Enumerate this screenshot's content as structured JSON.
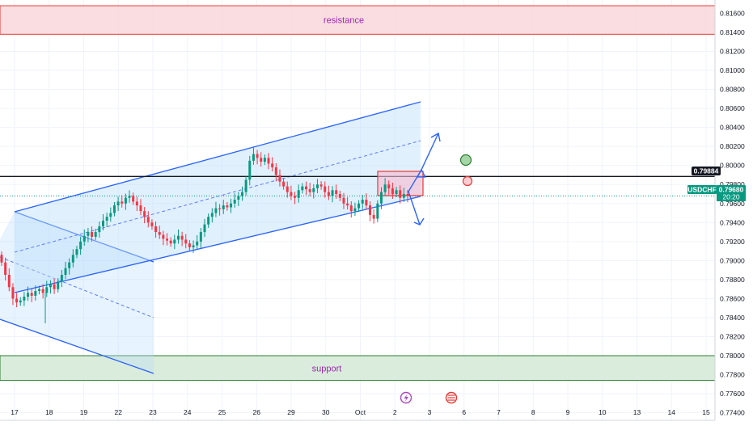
{
  "chart_data": {
    "type": "candlestick",
    "symbol": "USDCHF",
    "price_axis": {
      "ticks": [
        "0.81600",
        "0.81400",
        "0.81200",
        "0.81000",
        "0.80800",
        "0.80600",
        "0.80400",
        "0.80200",
        "0.80000",
        "0.79800",
        "0.79600",
        "0.79400",
        "0.79200",
        "0.79000",
        "0.78800",
        "0.78600",
        "0.78400",
        "0.78200",
        "0.78000",
        "0.77800",
        "0.77600",
        "0.77400"
      ],
      "range": [
        0.7732,
        0.8174
      ]
    },
    "time_axis": {
      "labels": [
        "17",
        "18",
        "19",
        "22",
        "23",
        "24",
        "25",
        "26",
        "29",
        "30",
        "Oct",
        "2",
        "3",
        "6",
        "7",
        "8",
        "9",
        "10",
        "13",
        "14",
        "15"
      ]
    },
    "zones": {
      "resistance": {
        "label": "resistance",
        "low": 0.8138,
        "high": 0.8168
      },
      "support": {
        "label": "support",
        "low": 0.7774,
        "high": 0.78
      }
    },
    "horizontal_line_price": 0.79884,
    "last_price": {
      "label": "USDCHF",
      "value": "0.79680",
      "countdown": "20:20"
    },
    "mark_tag": {
      "value": "0.79884"
    },
    "ohlc_path_closes": [
      0.7898,
      0.7885,
      0.7872,
      0.786,
      0.7856,
      0.7858,
      0.7862,
      0.7866,
      0.7863,
      0.7868,
      0.787,
      0.7866,
      0.7872,
      0.7875,
      0.787,
      0.7878,
      0.7885,
      0.7892,
      0.7898,
      0.7906,
      0.7912,
      0.792,
      0.7926,
      0.793,
      0.7925,
      0.793,
      0.7936,
      0.7942,
      0.7946,
      0.795,
      0.7958,
      0.7962,
      0.796,
      0.7966,
      0.7968,
      0.7962,
      0.7958,
      0.7952,
      0.7946,
      0.794,
      0.7936,
      0.793,
      0.7927,
      0.7923,
      0.7921,
      0.7918,
      0.7922,
      0.7926,
      0.7922,
      0.7918,
      0.7914,
      0.7916,
      0.792,
      0.793,
      0.7938,
      0.7946,
      0.795,
      0.7955,
      0.7954,
      0.7958,
      0.7956,
      0.796,
      0.7964,
      0.7968,
      0.7972,
      0.7985,
      0.8005,
      0.8012,
      0.8008,
      0.8004,
      0.8008,
      0.8002,
      0.7998,
      0.799,
      0.7983,
      0.7978,
      0.7972,
      0.7968,
      0.7966,
      0.7974,
      0.7978,
      0.7975,
      0.7972,
      0.7976,
      0.798,
      0.7978,
      0.7972,
      0.7968,
      0.7974,
      0.797,
      0.7966,
      0.796,
      0.7958,
      0.7952,
      0.7955,
      0.796,
      0.7964,
      0.7958,
      0.7948,
      0.7944,
      0.796,
      0.7972,
      0.798,
      0.7976,
      0.797,
      0.7974,
      0.7966,
      0.797,
      0.7968
    ]
  }
}
